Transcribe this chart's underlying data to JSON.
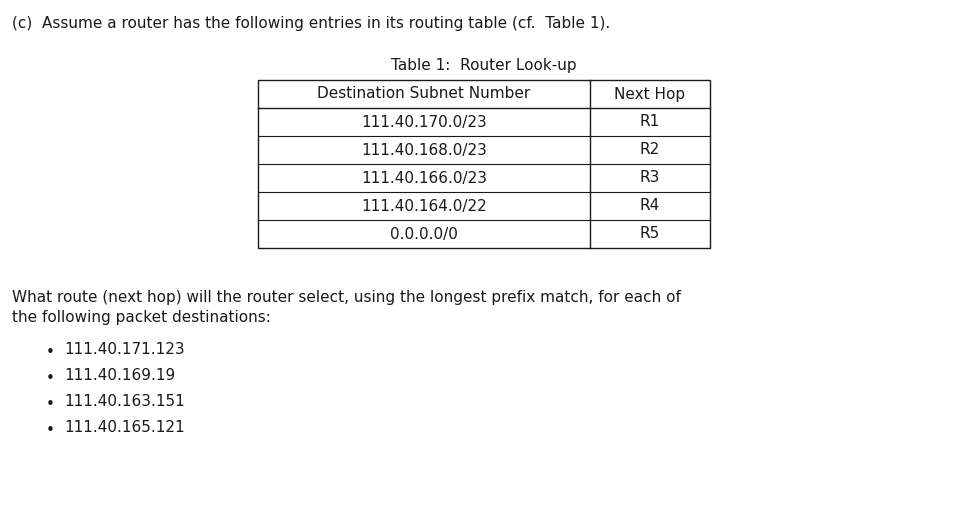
{
  "title_c": "(c)  Assume a router has the following entries in its routing table (cf.  Table 1).",
  "table_title": "Table 1:  Router Look-up",
  "col_headers": [
    "Destination Subnet Number",
    "Next Hop"
  ],
  "table_rows": [
    [
      "111.40.170.0/23",
      "R1"
    ],
    [
      "111.40.168.0/23",
      "R2"
    ],
    [
      "111.40.166.0/23",
      "R3"
    ],
    [
      "111.40.164.0/22",
      "R4"
    ],
    [
      "0.0.0.0/0",
      "R5"
    ]
  ],
  "question_line1": "What route (next hop) will the router select, using the longest prefix match, for each of",
  "question_line2": "the following packet destinations:",
  "bullet_items": [
    "111.40.171.123",
    "111.40.169.19",
    "111.40.163.151",
    "111.40.165.121"
  ],
  "bg_color": "#ffffff",
  "text_color": "#1a1a1a",
  "font_family": "sans-serif",
  "title_fontsize": 11.0,
  "body_fontsize": 11.0,
  "table_fontsize": 11.0,
  "table_title_fontsize": 11.0
}
